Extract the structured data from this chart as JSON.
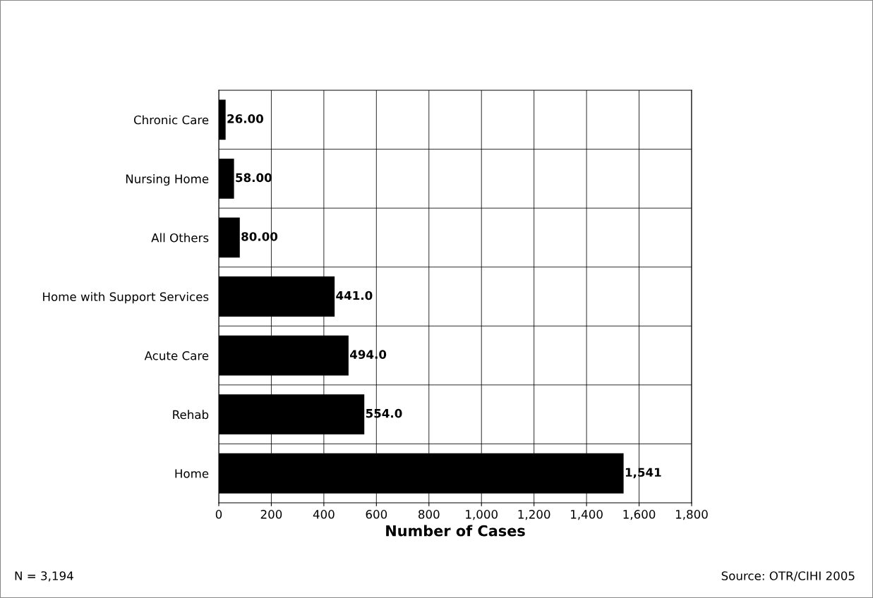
{
  "chart_data": {
    "type": "bar",
    "orientation": "horizontal",
    "xlabel": "Number of Cases",
    "categories": [
      "Chronic Care",
      "Nursing Home",
      "All Others",
      "Home with Support Services",
      "Acute Care",
      "Rehab",
      "Home"
    ],
    "values": [
      26,
      58,
      80,
      441,
      494,
      554,
      1541
    ],
    "value_labels": [
      "26.00",
      "58.00",
      "80.00",
      "441.0",
      "494.0",
      "554.0",
      "1,541"
    ],
    "color": "#000000",
    "xlim": [
      0,
      1800
    ],
    "xticks": [
      0,
      200,
      400,
      600,
      800,
      {
        "value": 1000,
        "label": "1,000"
      },
      {
        "value": 1200,
        "label": "1,200"
      },
      {
        "value": 1400,
        "label": "1,400"
      },
      {
        "value": 1600,
        "label": "1,600"
      },
      {
        "value": 1800,
        "label": "1,800"
      }
    ],
    "grid": true,
    "annotations": [
      "N = 3,194",
      "Source: OTR/CIHI 2005"
    ]
  }
}
